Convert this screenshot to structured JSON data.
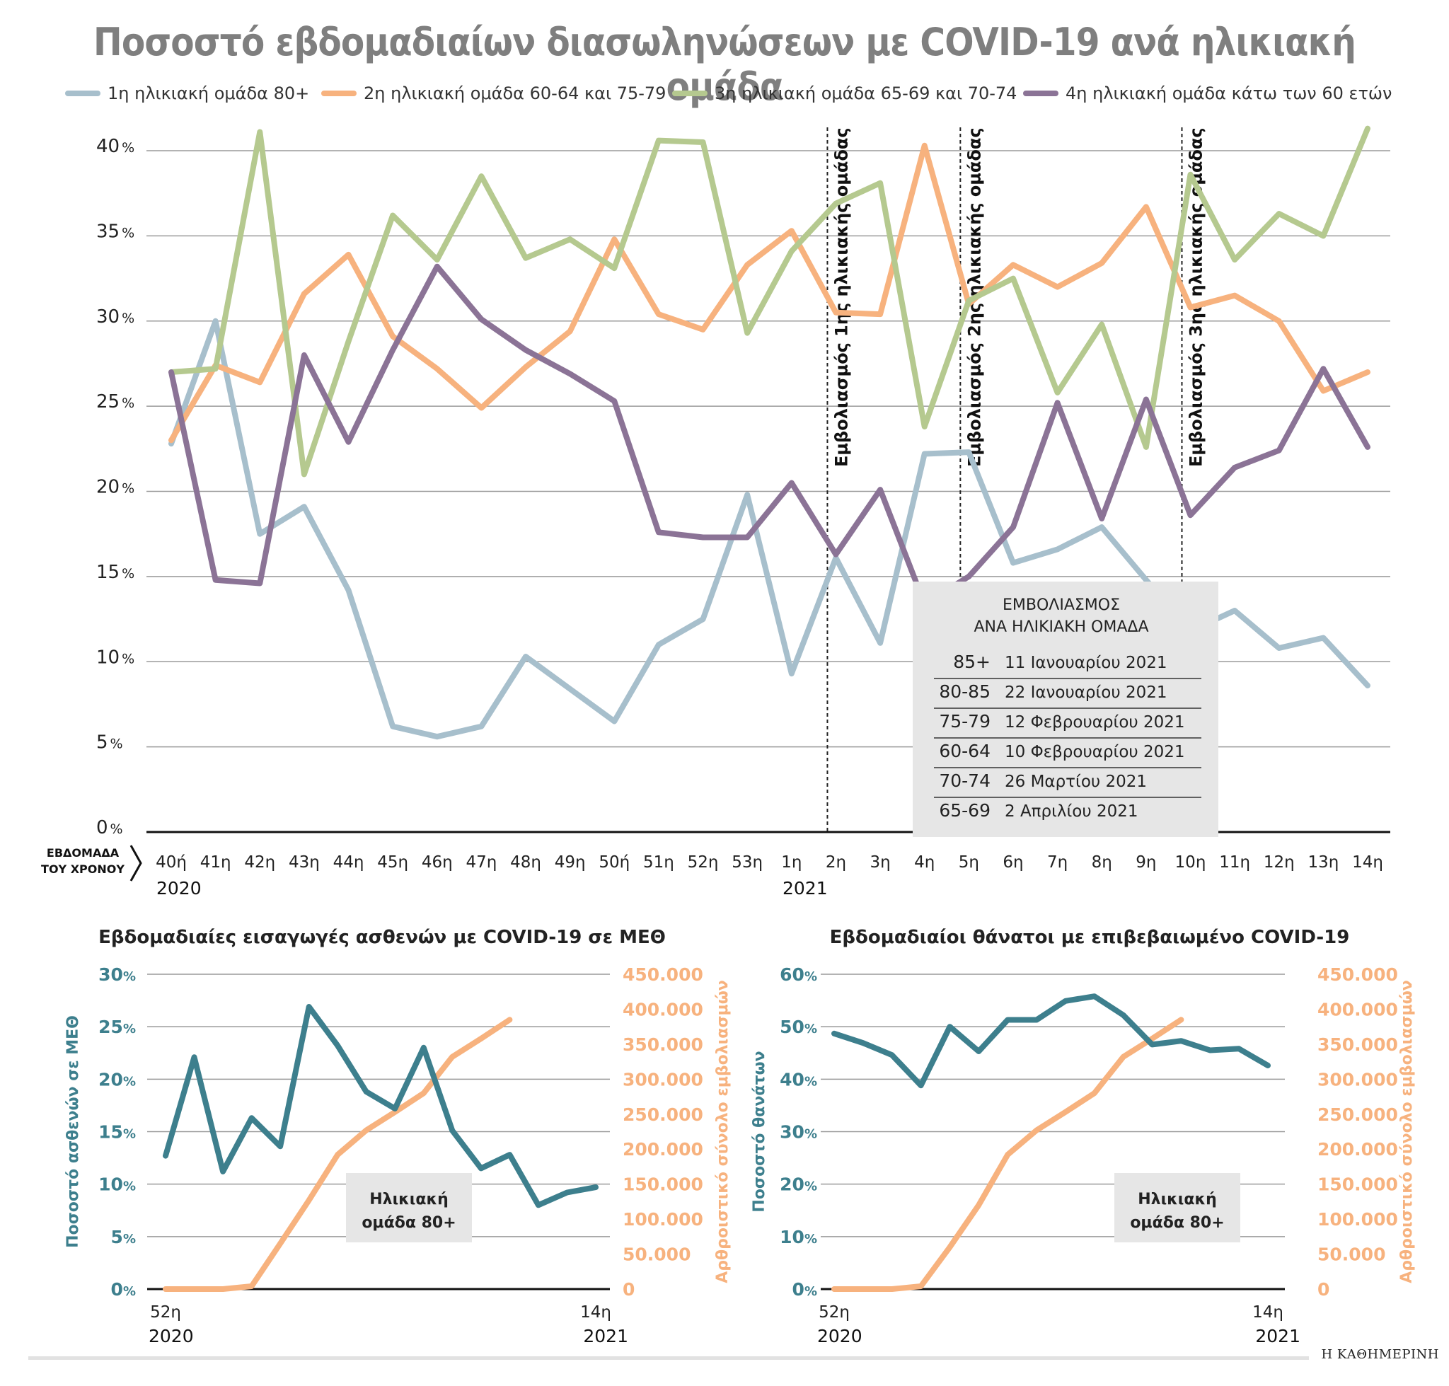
{
  "title": "Ποσοστό εβδομαδιαίων διασωληνώσεων με COVID-19 ανά ηλικιακή ομάδα",
  "legend": [
    {
      "label": "1η ηλικιακή ομάδα 80+",
      "color": "#a7bfcc"
    },
    {
      "label": "2η ηλικιακή ομάδα 60-64 και 75-79",
      "color": "#f7b27e"
    },
    {
      "label": "3η ηλικιακή ομάδα 65-69 και 70-74",
      "color": "#b5c98f"
    },
    {
      "label": "4η ηλικιακή ομάδα κάτω των 60 ετών",
      "color": "#8b7396"
    }
  ],
  "x_axis_caption": [
    "ΕΒΔΟΜΑΔΑ",
    "ΤΟΥ ΧΡΟΝΟΥ"
  ],
  "year_labels": {
    "first": "2020",
    "second": "2021"
  },
  "percent_sign": "%",
  "vaccination_markers": [
    {
      "week": "2η",
      "label": "Εμβολιασμός 1ης ηλικιακής ομάδας"
    },
    {
      "week": "5η",
      "label": "Εμβολιασμός 2ης ηλικιακής ομάδας"
    },
    {
      "week": "10η",
      "label": "Εμβολιασμός 3ης ηλικιακής ομάδας"
    }
  ],
  "vaccination_table": {
    "title_line1": "ΕΜΒΟΛΙΑΣΜΟΣ",
    "title_line2": "ΑΝΑ ΗΛΙΚΙΑΚΗ ΟΜΑΔΑ",
    "rows": [
      {
        "age": "85+",
        "date": "11 Ιανουαρίου 2021"
      },
      {
        "age": "80-85",
        "date": "22 Ιανουαρίου 2021"
      },
      {
        "age": "75-79",
        "date": "12 Φεβρουαρίου 2021"
      },
      {
        "age": "60-64",
        "date": "10 Φεβρουαρίου 2021"
      },
      {
        "age": "70-74",
        "date": "26 Μαρτίου 2021"
      },
      {
        "age": "65-69",
        "date": "2 Απριλίου 2021"
      }
    ]
  },
  "chart_data": [
    {
      "type": "line",
      "title": "Ποσοστό εβδομαδιαίων διασωληνώσεων με COVID-19 ανά ηλικιακή ομάδα",
      "categories": [
        "40ή",
        "41η",
        "42η",
        "43η",
        "44η",
        "45η",
        "46η",
        "47η",
        "48η",
        "49η",
        "50ή",
        "51η",
        "52η",
        "53η",
        "1η",
        "2η",
        "3η",
        "4η",
        "5η",
        "6η",
        "7η",
        "8η",
        "9η",
        "10η",
        "11η",
        "12η",
        "13η",
        "14η"
      ],
      "ylim": [
        0,
        40
      ],
      "yticks": [
        0,
        5,
        10,
        15,
        20,
        25,
        30,
        35,
        40
      ],
      "grid": true,
      "legend_position": "top",
      "series": [
        {
          "name": "1η ηλικιακή ομάδα 80+",
          "color": "#a7bfcc",
          "values": [
            22.8,
            30.0,
            17.5,
            19.1,
            14.2,
            6.2,
            5.6,
            6.2,
            10.3,
            8.4,
            6.5,
            11.0,
            12.5,
            19.8,
            9.3,
            16.1,
            11.1,
            22.2,
            22.3,
            15.8,
            16.6,
            17.9,
            14.8,
            11.8,
            13.0,
            10.8,
            11.4,
            8.6
          ]
        },
        {
          "name": "2η ηλικιακή ομάδα 60-64 και 75-79",
          "color": "#f7b27e",
          "values": [
            23.0,
            27.4,
            26.4,
            31.6,
            33.9,
            29.1,
            27.2,
            24.9,
            27.3,
            29.4,
            34.8,
            30.4,
            29.5,
            33.3,
            35.3,
            30.5,
            30.4,
            40.3,
            31.0,
            33.3,
            32.0,
            33.4,
            36.7,
            30.8,
            31.5,
            30.0,
            25.9,
            27.0
          ]
        },
        {
          "name": "3η ηλικιακή ομάδα 65-69 και 70-74",
          "color": "#b5c98f",
          "values": [
            27.0,
            27.2,
            41.1,
            21.0,
            28.8,
            36.2,
            33.6,
            38.5,
            33.7,
            34.8,
            33.1,
            40.6,
            40.5,
            29.3,
            34.1,
            36.9,
            38.1,
            23.8,
            31.2,
            32.5,
            25.8,
            29.8,
            22.6,
            38.6,
            33.6,
            36.3,
            35.0,
            41.3
          ]
        },
        {
          "name": "4η ηλικιακή ομάδα κάτω των 60 ετών",
          "color": "#8b7396",
          "values": [
            27.0,
            14.8,
            14.6,
            28.0,
            22.9,
            28.3,
            33.2,
            30.1,
            28.3,
            26.9,
            25.3,
            17.6,
            17.3,
            17.3,
            20.5,
            16.3,
            20.1,
            13.4,
            15.0,
            17.9,
            25.2,
            18.4,
            25.4,
            18.6,
            21.4,
            22.4,
            27.2,
            22.6
          ]
        }
      ]
    },
    {
      "type": "line",
      "title": "Εβδομαδιαίες εισαγωγές ασθενών με COVID-19 σε ΜΕΘ",
      "x_labels": {
        "start": "52η",
        "end": "14η",
        "start_year": "2020",
        "end_year": "2021"
      },
      "ylabel": "Ποσοστό ασθενών σε ΜΕΘ",
      "y2label": "Αρθροιστικό σύνολο εμβολιασμών",
      "ylim": [
        0,
        30
      ],
      "yticks": [
        0,
        5,
        10,
        15,
        20,
        25,
        30
      ],
      "y2lim": [
        0,
        450000
      ],
      "y2ticks": [
        "0",
        "50.000",
        "100.000",
        "150.000",
        "200.000",
        "250.000",
        "300.000",
        "350.000",
        "400.000",
        "450.000"
      ],
      "box_label": [
        "Ηλικιακή",
        "ομάδα 80+"
      ],
      "series": [
        {
          "name": "Ποσοστό ασθενών σε ΜΕΘ",
          "color": "#3d7f8d",
          "axis": "left",
          "values": [
            12.7,
            22.1,
            11.2,
            16.3,
            13.6,
            26.9,
            23.2,
            18.8,
            17.2,
            23.0,
            15.1,
            11.5,
            12.8,
            8.0,
            9.2,
            9.7
          ]
        },
        {
          "name": "Αρθροιστικό σύνολο εμβολιασμών",
          "color": "#f7b27e",
          "axis": "right",
          "values": [
            0,
            0,
            0,
            4000,
            65000,
            127000,
            192000,
            227000,
            253000,
            280000,
            332000,
            358000,
            385000
          ]
        }
      ]
    },
    {
      "type": "line",
      "title": "Εβδομαδιαίοι θάνατοι με επιβεβαιωμένο COVID-19",
      "x_labels": {
        "start": "52η",
        "end": "14η",
        "start_year": "2020",
        "end_year": "2021"
      },
      "ylabel": "Ποσοστό θανάτων",
      "y2label": "Αρθροιστικό σύνολο εμβολιασμών",
      "ylim": [
        0,
        60
      ],
      "yticks": [
        0,
        10,
        20,
        30,
        40,
        50,
        60
      ],
      "y2lim": [
        0,
        450000
      ],
      "y2ticks": [
        "0",
        "50.000",
        "100.000",
        "150.000",
        "200.000",
        "250.000",
        "300.000",
        "350.000",
        "400.000",
        "450.000"
      ],
      "box_label": [
        "Ηλικιακή",
        "ομάδα 80+"
      ],
      "series": [
        {
          "name": "Ποσοστό θανάτων",
          "color": "#3d7f8d",
          "axis": "left",
          "values": [
            48.7,
            46.9,
            44.6,
            38.8,
            50.0,
            45.3,
            51.3,
            51.3,
            54.9,
            55.8,
            52.2,
            46.6,
            47.3,
            45.5,
            45.8,
            42.6
          ]
        },
        {
          "name": "Αρθροιστικό σύνολο εμβολιασμών",
          "color": "#f7b27e",
          "axis": "right",
          "values": [
            0,
            0,
            0,
            4000,
            60000,
            120000,
            192000,
            227000,
            253000,
            280000,
            332000,
            358000,
            385000
          ]
        }
      ]
    }
  ],
  "footer_brand": "Η ΚΑΘΗΜΕΡΙΝΗ"
}
